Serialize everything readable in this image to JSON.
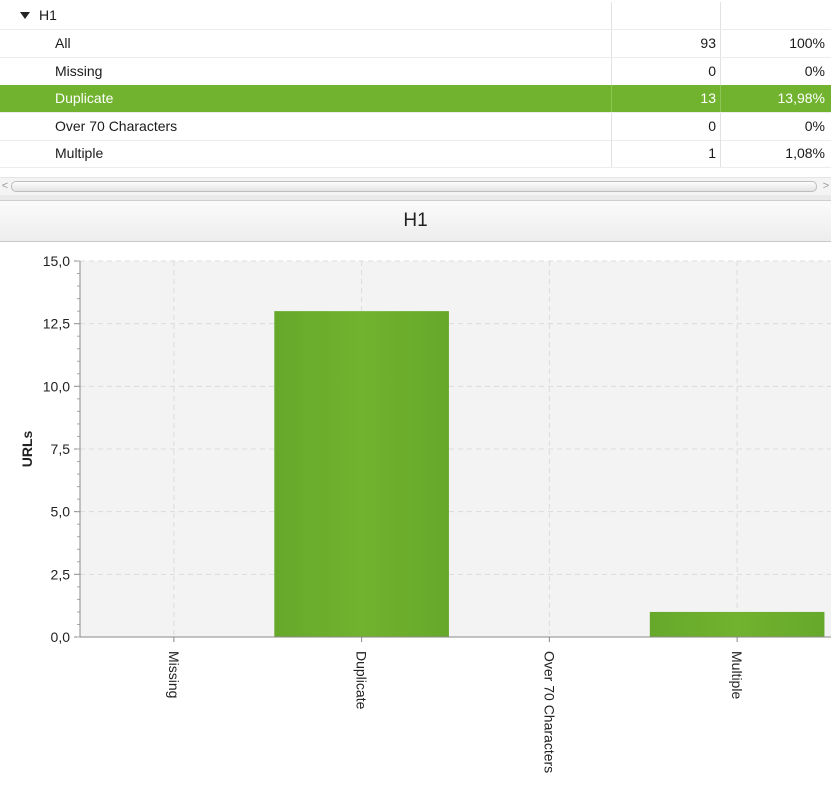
{
  "table": {
    "group_label": "H1",
    "rows": [
      {
        "label": "All",
        "count": "93",
        "percent": "100%"
      },
      {
        "label": "Missing",
        "count": "0",
        "percent": "0%"
      },
      {
        "label": "Duplicate",
        "count": "13",
        "percent": "13,98%"
      },
      {
        "label": "Over 70 Characters",
        "count": "0",
        "percent": "0%"
      },
      {
        "label": "Multiple",
        "count": "1",
        "percent": "1,08%"
      }
    ],
    "selected_row": "Duplicate"
  },
  "scrollbar": {
    "left_icon": "chevron-left-icon",
    "right_icon": "chevron-right-icon",
    "left_glyph": "<",
    "right_glyph": ">"
  },
  "chart_header": {
    "title": "H1"
  },
  "colors": {
    "accent": "#71b32e",
    "plot_bg": "#f3f3f3",
    "grid": "#dcdcdc"
  },
  "chart_data": {
    "type": "bar",
    "title": "H1",
    "ylabel": "URLs",
    "xlabel": "",
    "categories": [
      "Missing",
      "Duplicate",
      "Over 70 Characters",
      "Multiple"
    ],
    "values": [
      0,
      13,
      0,
      1
    ],
    "ylim": [
      0,
      15
    ],
    "yticks": [
      0,
      2.5,
      5,
      7.5,
      10,
      12.5,
      15
    ],
    "ytick_labels": [
      "0,0",
      "2,5",
      "5,0",
      "7,5",
      "10,0",
      "12,5",
      "15,0"
    ],
    "grid": true,
    "legend": "none"
  }
}
